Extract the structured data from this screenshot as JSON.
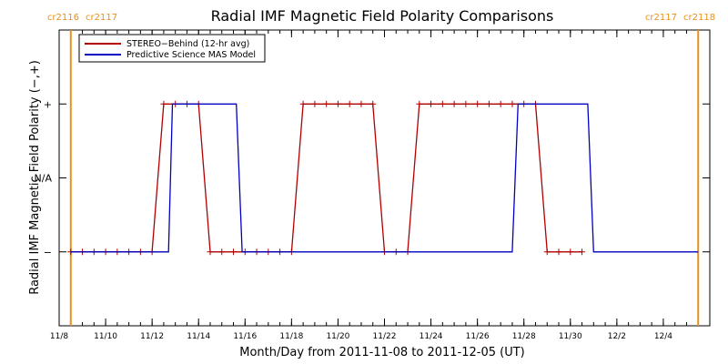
{
  "chart_data": {
    "type": "line",
    "title": "Radial IMF Magnetic Field Polarity Comparisons",
    "xlabel": "Month/Day from 2011-11-08 to 2011-12-05 (UT)",
    "ylabel": "Radial IMF Magnetic Field Polarity (−,+)",
    "x_range": [
      "2011-11-08",
      "2011-12-05"
    ],
    "x_ticks": [
      "11/8",
      "11/10",
      "11/12",
      "11/14",
      "11/16",
      "11/18",
      "11/20",
      "11/22",
      "11/24",
      "11/26",
      "11/28",
      "11/30",
      "12/2",
      "12/4"
    ],
    "y_categories": [
      "−",
      "N/A",
      "+"
    ],
    "y_range": [
      -2.0,
      2.0
    ],
    "grid": false,
    "legend_position": "top-left",
    "carrington_markers": [
      {
        "date": "2011-11-08 12:00",
        "label_left": "cr2116",
        "label_right": "cr2117"
      },
      {
        "date": "2011-12-05 12:00",
        "label_left": "cr2117",
        "label_right": "cr2118"
      }
    ],
    "series": [
      {
        "name": "STEREO−Behind (12-hr avg)",
        "color": "#b00000",
        "markers": "plus",
        "points": [
          [
            "2011-11-08 12:00",
            -1
          ],
          [
            "2011-11-09 00:00",
            -1
          ],
          [
            "2011-11-09 12:00",
            -1
          ],
          [
            "2011-11-10 00:00",
            -1
          ],
          [
            "2011-11-10 12:00",
            -1
          ],
          [
            "2011-11-11 00:00",
            -1
          ],
          [
            "2011-11-11 12:00",
            -1
          ],
          [
            "2011-11-12 00:00",
            -1
          ],
          [
            "2011-11-12 12:00",
            1
          ],
          [
            "2011-11-13 00:00",
            1
          ],
          [
            "2011-11-13 12:00",
            1
          ],
          [
            "2011-11-14 00:00",
            1
          ],
          [
            "2011-11-14 12:00",
            -1
          ],
          [
            "2011-11-15 00:00",
            -1
          ],
          [
            "2011-11-15 12:00",
            -1
          ],
          [
            "2011-11-16 00:00",
            -1
          ],
          [
            "2011-11-16 12:00",
            -1
          ],
          [
            "2011-11-17 00:00",
            -1
          ],
          [
            "2011-11-17 12:00",
            -1
          ],
          [
            "2011-11-18 00:00",
            -1
          ],
          [
            "2011-11-18 12:00",
            1
          ],
          [
            "2011-11-19 00:00",
            1
          ],
          [
            "2011-11-19 12:00",
            1
          ],
          [
            "2011-11-20 00:00",
            1
          ],
          [
            "2011-11-20 12:00",
            1
          ],
          [
            "2011-11-21 00:00",
            1
          ],
          [
            "2011-11-21 12:00",
            1
          ],
          [
            "2011-11-22 00:00",
            -1
          ],
          [
            "2011-11-22 12:00",
            -1
          ],
          [
            "2011-11-23 00:00",
            -1
          ],
          [
            "2011-11-23 12:00",
            1
          ],
          [
            "2011-11-24 00:00",
            1
          ],
          [
            "2011-11-24 12:00",
            1
          ],
          [
            "2011-11-25 00:00",
            1
          ],
          [
            "2011-11-25 12:00",
            1
          ],
          [
            "2011-11-26 00:00",
            1
          ],
          [
            "2011-11-26 12:00",
            1
          ],
          [
            "2011-11-27 00:00",
            1
          ],
          [
            "2011-11-27 12:00",
            1
          ],
          [
            "2011-11-28 00:00",
            1
          ],
          [
            "2011-11-28 12:00",
            1
          ],
          [
            "2011-11-29 00:00",
            -1
          ],
          [
            "2011-11-29 12:00",
            -1
          ],
          [
            "2011-11-30 00:00",
            -1
          ],
          [
            "2011-11-30 12:00",
            -1
          ]
        ]
      },
      {
        "name": "Predictive Science MAS Model",
        "color": "#0000c0",
        "markers": "none",
        "points": [
          [
            "2011-11-08 12:00",
            -1
          ],
          [
            "2011-11-12 17:00",
            -1
          ],
          [
            "2011-11-12 21:00",
            1
          ],
          [
            "2011-11-15 15:00",
            1
          ],
          [
            "2011-11-15 21:00",
            -1
          ],
          [
            "2011-11-27 12:00",
            -1
          ],
          [
            "2011-11-27 18:00",
            1
          ],
          [
            "2011-11-30 18:00",
            1
          ],
          [
            "2011-12-01 00:00",
            -1
          ],
          [
            "2011-12-05 12:00",
            -1
          ]
        ]
      }
    ]
  }
}
